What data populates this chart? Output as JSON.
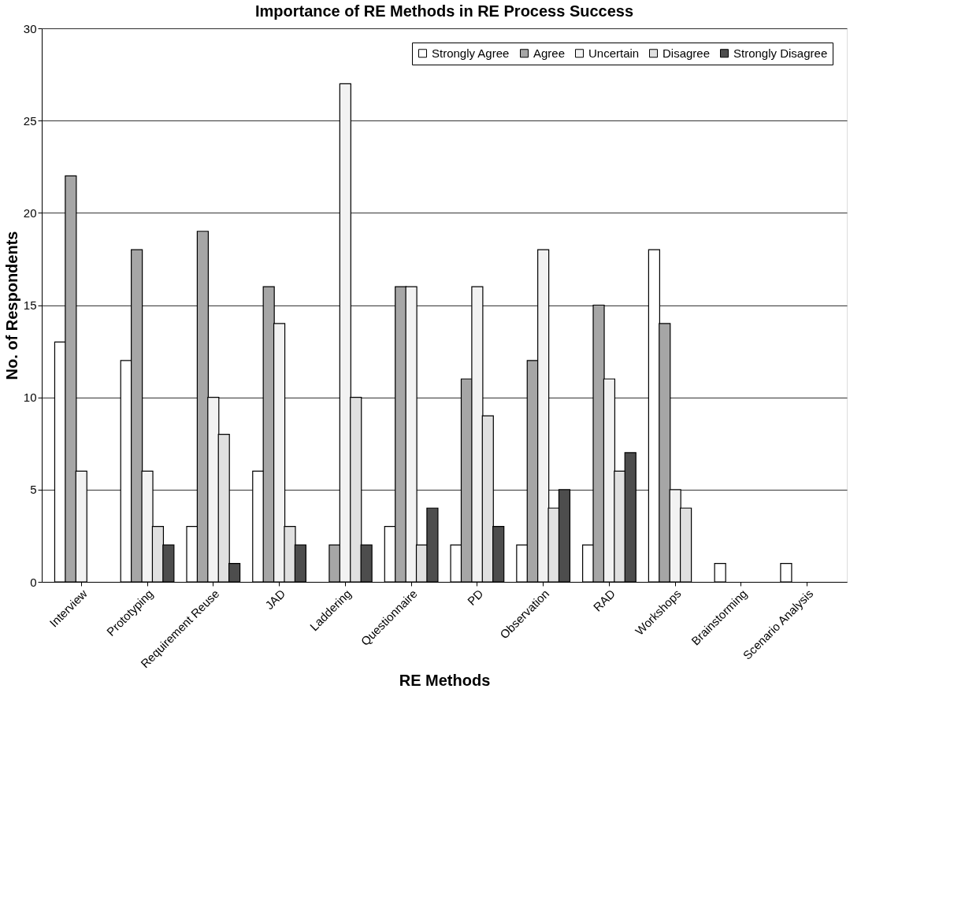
{
  "chart_data": {
    "type": "bar",
    "title": "Importance of RE Methods in RE Process Success",
    "xlabel": "RE Methods",
    "ylabel": "No. of Respondents",
    "categories": [
      "Interview",
      "Prototyping",
      "Requirement Reuse",
      "JAD",
      "Laddering",
      "Questionnaire",
      "PD",
      "Observation",
      "RAD",
      "Workshops",
      "Brainstorming",
      "Scenario Analysis"
    ],
    "series": [
      {
        "name": "Strongly Agree",
        "color": "#ffffff",
        "values": [
          13,
          12,
          3,
          6,
          0,
          3,
          2,
          2,
          2,
          18,
          1,
          1
        ]
      },
      {
        "name": "Agree",
        "color": "#a6a6a6",
        "values": [
          22,
          18,
          19,
          16,
          2,
          16,
          11,
          12,
          15,
          14,
          0,
          0
        ]
      },
      {
        "name": "Uncertain",
        "color": "#f2f2f2",
        "values": [
          6,
          6,
          10,
          14,
          27,
          16,
          16,
          18,
          11,
          5,
          0,
          0
        ]
      },
      {
        "name": "Disagree",
        "color": "#e0e0e0",
        "values": [
          0,
          3,
          8,
          3,
          10,
          2,
          9,
          4,
          6,
          4,
          0,
          0
        ]
      },
      {
        "name": "Strongly Disagree",
        "color": "#4d4d4d",
        "values": [
          0,
          2,
          1,
          2,
          2,
          4,
          3,
          5,
          7,
          0,
          0,
          0
        ]
      }
    ],
    "ylim": [
      0,
      30
    ],
    "yticks": [
      0,
      5,
      10,
      15,
      20,
      25,
      30
    ],
    "grid": "y",
    "legend": "top right"
  }
}
